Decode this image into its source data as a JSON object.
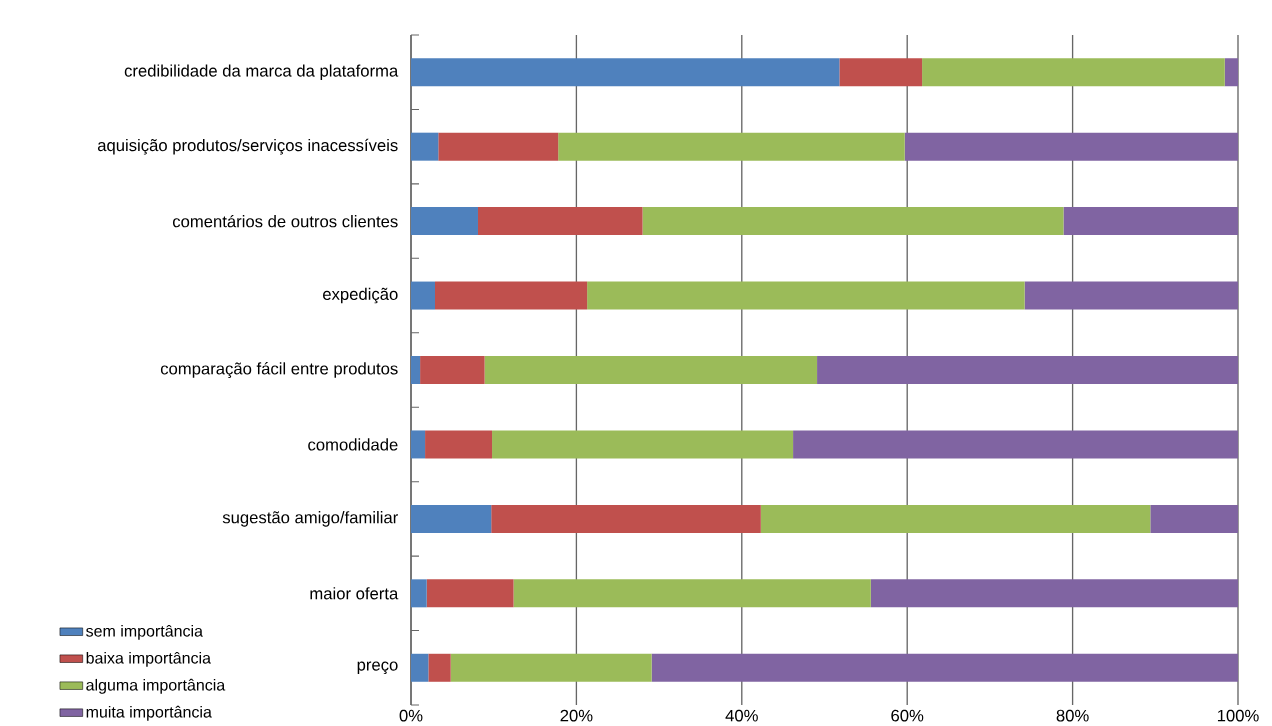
{
  "chart_data": {
    "type": "bar",
    "orientation": "horizontal",
    "stacked": true,
    "categories": [
      "credibilidade da marca da plataforma",
      "aquisição produtos/serviços inacessíveis",
      "comentários de outros clientes",
      "expedição",
      "comparação fácil entre produtos",
      "comodidade",
      "sugestão amigo/familiar",
      "maior oferta",
      "preço"
    ],
    "series": [
      {
        "name": "sem importância",
        "color": "#4f81bd",
        "values": [
          51.8,
          3.3,
          8.1,
          2.9,
          1.1,
          1.7,
          9.7,
          1.9,
          2.1
        ]
      },
      {
        "name": "baixa importância",
        "color": "#c0504d",
        "values": [
          10.0,
          14.5,
          19.9,
          18.4,
          7.8,
          8.1,
          32.6,
          10.5,
          2.7
        ]
      },
      {
        "name": "alguma importância",
        "color": "#9bbb59",
        "values": [
          36.6,
          41.9,
          50.9,
          52.9,
          40.2,
          36.4,
          47.1,
          43.2,
          24.3
        ]
      },
      {
        "name": "muita importância",
        "color": "#8064a2",
        "values": [
          1.6,
          40.3,
          21.1,
          25.8,
          50.9,
          53.8,
          10.6,
          44.4,
          70.9
        ]
      }
    ],
    "xlim": [
      0,
      100
    ],
    "xticks": [
      {
        "value": 0,
        "label": "0%"
      },
      {
        "value": 20,
        "label": "20%"
      },
      {
        "value": 40,
        "label": "40%"
      },
      {
        "value": 60,
        "label": "60%"
      },
      {
        "value": 80,
        "label": "80%"
      },
      {
        "value": 100,
        "label": "100%"
      }
    ],
    "grid": "x",
    "legend": "bottom left"
  }
}
